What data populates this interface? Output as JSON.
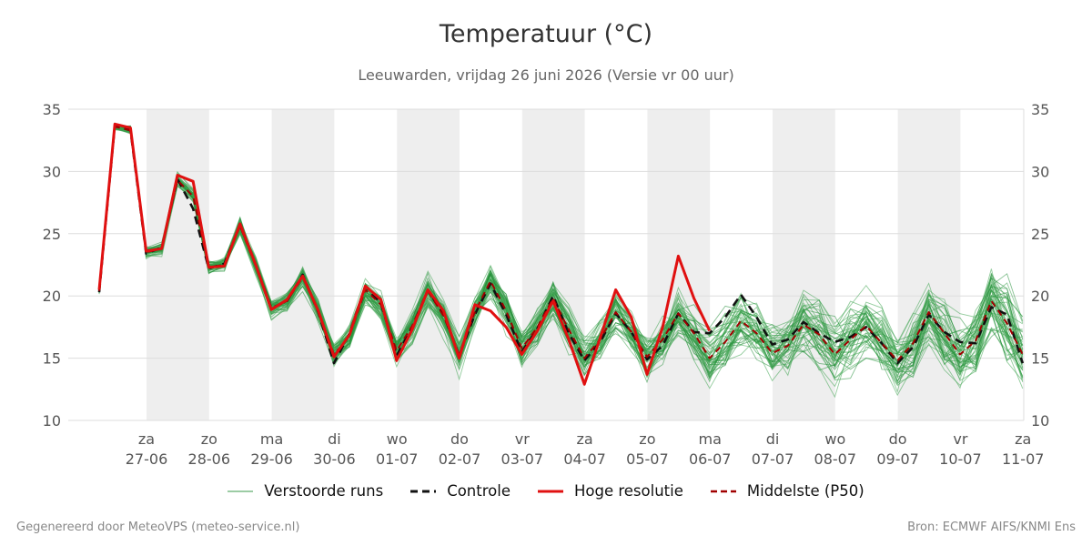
{
  "chart_title": "Temperatuur (°C)",
  "chart_subtitle": "Leeuwarden, vrijdag 26 juni 2026 (Versie vr 00 uur)",
  "footer": {
    "left": "Gegenereerd door MeteoVPS (meteo-service.nl)",
    "right": "Bron: ECMWF AIFS/KNMI Ens"
  },
  "legend": [
    {
      "label": "Verstoorde runs",
      "color": "#3a9a48",
      "style": "thin-solid"
    },
    {
      "label": "Controle",
      "color": "#111111",
      "style": "dashed"
    },
    {
      "label": "Hoge resolutie",
      "color": "#e01010",
      "style": "solid"
    },
    {
      "label": "Middelste (P50)",
      "color": "#a00000",
      "style": "dashed"
    }
  ],
  "chart_data": {
    "type": "line",
    "x_unit": "hours since start (6-hourly steps)",
    "x_start_label": "vr 26-06 06 UTC",
    "ylim": [
      10,
      35
    ],
    "yticks": [
      10,
      15,
      20,
      25,
      30,
      35
    ],
    "grid": true,
    "weekend_shading": true,
    "day_ticks": [
      {
        "day": "za",
        "date": "27-06"
      },
      {
        "day": "zo",
        "date": "28-06"
      },
      {
        "day": "ma",
        "date": "29-06"
      },
      {
        "day": "di",
        "date": "30-06"
      },
      {
        "day": "wo",
        "date": "01-07"
      },
      {
        "day": "do",
        "date": "02-07"
      },
      {
        "day": "vr",
        "date": "03-07"
      },
      {
        "day": "za",
        "date": "04-07"
      },
      {
        "day": "zo",
        "date": "05-07"
      },
      {
        "day": "ma",
        "date": "06-07"
      },
      {
        "day": "di",
        "date": "07-07"
      },
      {
        "day": "wo",
        "date": "08-07"
      },
      {
        "day": "do",
        "date": "09-07"
      },
      {
        "day": "vr",
        "date": "10-07"
      },
      {
        "day": "za",
        "date": "11-07"
      }
    ],
    "shaded_days": [
      1,
      3,
      5,
      7,
      9,
      11,
      13
    ],
    "series": [
      {
        "name": "Hoge resolutie",
        "color": "#e01010",
        "dash": "",
        "width": 3,
        "values": [
          20.5,
          33.8,
          33.5,
          23.6,
          23.8,
          29.7,
          29.2,
          22.3,
          22.4,
          25.8,
          22.5,
          18.9,
          19.7,
          21.6,
          18.8,
          15.1,
          16.9,
          20.8,
          19.7,
          14.8,
          17.3,
          20.5,
          18.8,
          15.0,
          19.3,
          18.8,
          17.5,
          15.3,
          17.2,
          19.6,
          16.5,
          12.9,
          16.6,
          20.5,
          18.3,
          13.7,
          17.5,
          23.2,
          19.8,
          17.2
        ]
      },
      {
        "name": "Controle",
        "color": "#111111",
        "dash": "9,6",
        "width": 2.6,
        "values": [
          20.3,
          33.7,
          33.3,
          23.4,
          23.9,
          29.4,
          27.0,
          22.2,
          22.6,
          25.7,
          22.5,
          19.0,
          19.6,
          21.7,
          18.7,
          14.6,
          17.0,
          20.8,
          19.4,
          15.2,
          17.5,
          20.5,
          18.5,
          15.2,
          18.5,
          21.0,
          18.5,
          15.5,
          17.4,
          20.0,
          17.0,
          14.8,
          16.3,
          18.6,
          17.1,
          14.9,
          16.0,
          18.6,
          17.1,
          17.0,
          18.3,
          20.1,
          18.3,
          16.1,
          16.5,
          17.9,
          17.0,
          16.3,
          16.7,
          17.5,
          16.2,
          14.6,
          15.9,
          18.5,
          17.1,
          16.3,
          16.2,
          19.1,
          18.5,
          14.6
        ]
      },
      {
        "name": "Middelste (P50)",
        "color": "#a00000",
        "dash": "7,5",
        "width": 2,
        "values": [
          20.4,
          33.6,
          33.3,
          23.5,
          23.8,
          29.3,
          28.0,
          22.3,
          22.5,
          25.6,
          22.4,
          19.0,
          19.6,
          21.5,
          18.8,
          15.3,
          16.8,
          20.5,
          19.3,
          15.6,
          17.6,
          20.4,
          18.4,
          15.3,
          18.7,
          21.2,
          18.8,
          15.8,
          17.5,
          19.8,
          17.3,
          15.0,
          16.5,
          18.7,
          17.1,
          15.1,
          16.5,
          18.6,
          17.0,
          15.0,
          16.3,
          18.0,
          17.0,
          15.4,
          16.0,
          17.7,
          16.9,
          15.3,
          16.5,
          17.6,
          16.2,
          14.8,
          16.2,
          18.7,
          17.0,
          15.3,
          16.4,
          19.6,
          17.8,
          15.3
        ]
      }
    ],
    "ensemble": {
      "name": "Verstoorde runs",
      "color": "#2e9a40",
      "members": 50,
      "mean_profile": [
        20.4,
        33.6,
        33.3,
        23.5,
        23.8,
        29.3,
        28.0,
        22.3,
        22.5,
        25.6,
        22.4,
        19.0,
        19.6,
        21.5,
        18.8,
        15.3,
        16.8,
        20.5,
        19.3,
        15.6,
        17.6,
        20.4,
        18.4,
        15.3,
        18.7,
        21.2,
        18.8,
        15.8,
        17.5,
        19.8,
        17.3,
        15.0,
        16.5,
        18.7,
        17.1,
        15.1,
        16.5,
        18.6,
        17.0,
        15.0,
        16.3,
        18.0,
        17.0,
        15.4,
        16.0,
        17.7,
        16.9,
        15.3,
        16.5,
        17.6,
        16.2,
        14.8,
        16.2,
        18.7,
        17.0,
        15.3,
        16.4,
        19.6,
        17.8,
        15.3
      ]
    }
  }
}
